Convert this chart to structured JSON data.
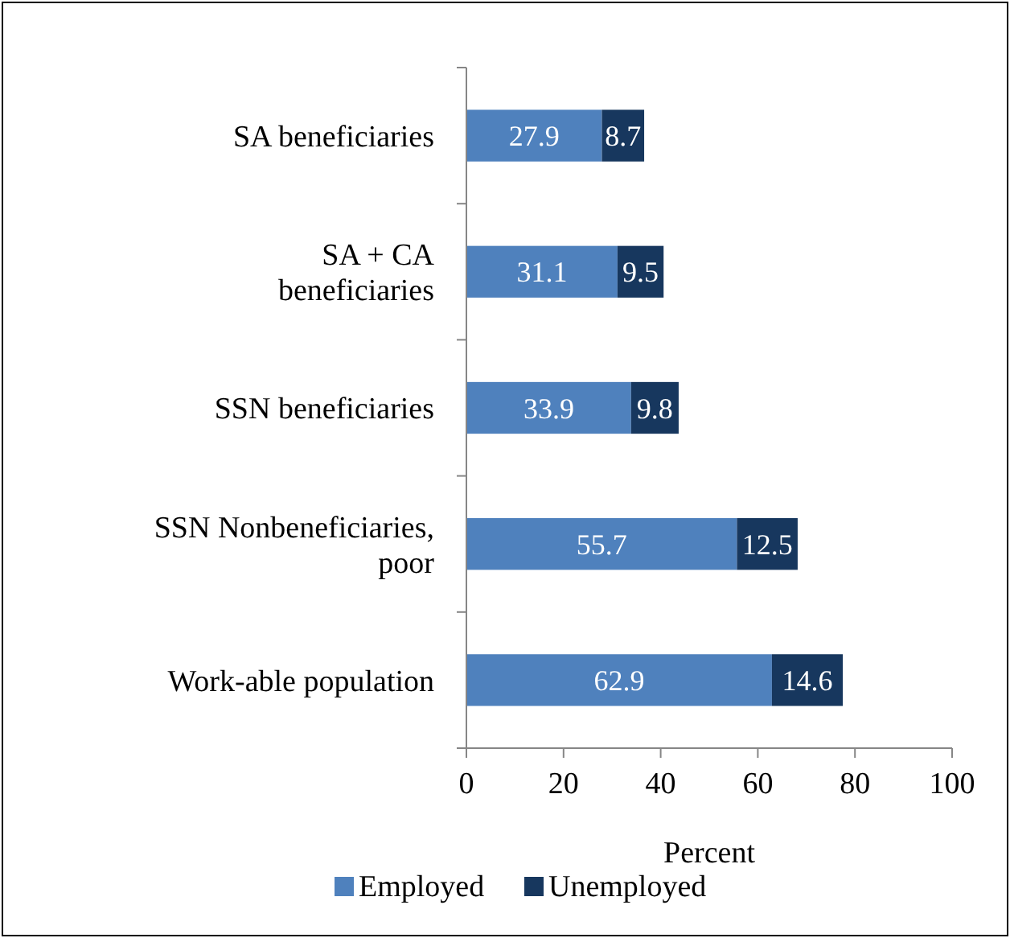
{
  "chart_data": {
    "type": "bar",
    "orientation": "horizontal",
    "stacked": true,
    "xlabel": "Percent",
    "categories": [
      "SA beneficiaries",
      "SA + CA\nbeneficiaries",
      "SSN beneficiaries",
      "SSN Nonbeneficiaries,\npoor",
      "Work-able population"
    ],
    "series": [
      {
        "name": "Employed",
        "color": "#4f81bd",
        "values": [
          27.9,
          31.1,
          33.9,
          55.7,
          62.9
        ]
      },
      {
        "name": "Unemployed",
        "color": "#17375e",
        "values": [
          8.7,
          9.5,
          9.8,
          12.5,
          14.6
        ]
      }
    ],
    "xlim": [
      0,
      100
    ],
    "xticks": [
      0,
      20,
      40,
      60,
      80,
      100
    ],
    "data_labels": true,
    "legend": "bottom",
    "grid": false
  }
}
